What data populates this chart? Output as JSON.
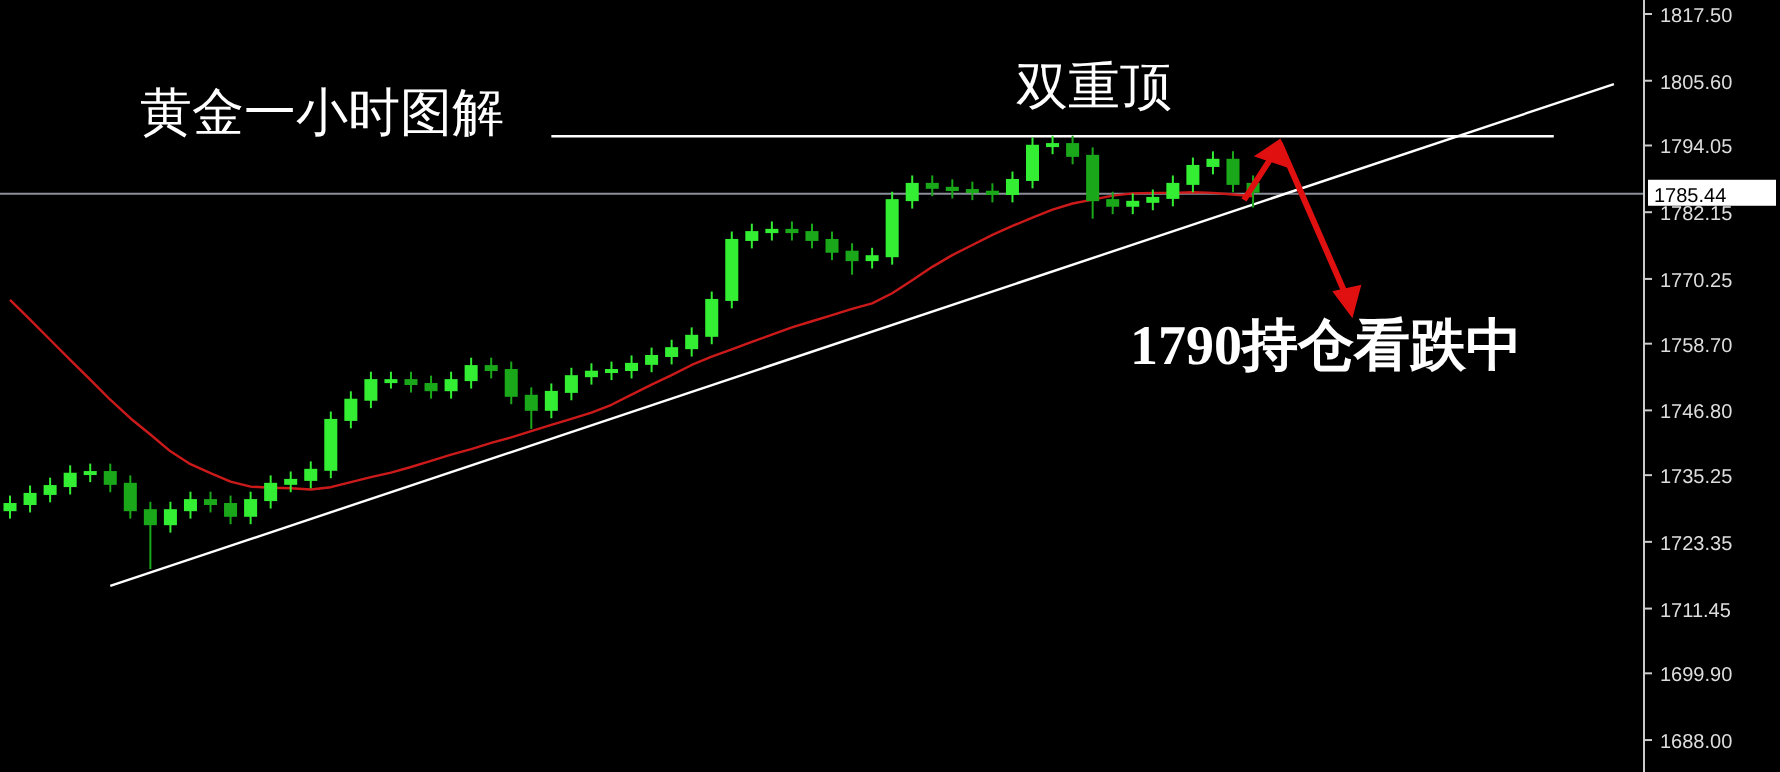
{
  "chart_data": {
    "type": "candlestick",
    "categories": [
      null,
      null,
      null,
      null,
      null,
      null,
      null,
      null,
      null,
      null,
      null,
      null,
      null,
      null,
      null,
      null,
      null,
      null,
      null,
      null,
      null,
      null,
      null,
      null,
      null,
      null,
      null,
      null,
      null,
      null,
      null,
      null,
      null,
      null,
      null,
      null,
      null,
      null,
      null,
      null,
      null,
      null,
      null,
      null,
      null,
      null,
      null,
      null,
      null,
      null,
      null,
      null,
      null,
      null,
      null,
      null,
      null,
      null,
      null,
      null,
      null,
      null,
      null,
      null,
      null,
      null,
      null,
      null,
      null,
      null,
      null,
      null,
      null,
      null,
      null,
      null,
      null,
      null,
      null,
      null,
      null,
      null
    ],
    "ohlc": [
      [
        1729.0,
        1731.6,
        1727.5,
        1730.1
      ],
      [
        1730.1,
        1733.4,
        1728.6,
        1731.9
      ],
      [
        1731.9,
        1734.8,
        1730.4,
        1733.3
      ],
      [
        1733.3,
        1737.0,
        1731.8,
        1735.5
      ],
      [
        1735.5,
        1737.3,
        1734.0,
        1735.8
      ],
      [
        1735.8,
        1737.3,
        1732.2,
        1733.7
      ],
      [
        1733.7,
        1735.2,
        1727.5,
        1729.0
      ],
      [
        1729.0,
        1730.5,
        1718.5,
        1726.5
      ],
      [
        1726.5,
        1730.5,
        1725.0,
        1729.0
      ],
      [
        1729.0,
        1732.3,
        1727.5,
        1730.8
      ],
      [
        1730.8,
        1732.3,
        1728.6,
        1730.1
      ],
      [
        1730.1,
        1731.6,
        1726.5,
        1728.0
      ],
      [
        1728.0,
        1732.3,
        1726.5,
        1730.8
      ],
      [
        1730.8,
        1735.2,
        1729.3,
        1733.7
      ],
      [
        1733.7,
        1735.9,
        1732.2,
        1734.4
      ],
      [
        1734.4,
        1737.7,
        1732.9,
        1736.2
      ],
      [
        1736.2,
        1746.6,
        1734.7,
        1745.1
      ],
      [
        1745.1,
        1750.2,
        1743.6,
        1748.7
      ],
      [
        1748.7,
        1753.7,
        1747.2,
        1752.2
      ],
      [
        1752.2,
        1753.7,
        1750.7,
        1752.2
      ],
      [
        1752.2,
        1753.7,
        1750.0,
        1751.5
      ],
      [
        1751.5,
        1753.0,
        1748.9,
        1750.4
      ],
      [
        1750.4,
        1753.7,
        1748.9,
        1752.2
      ],
      [
        1752.2,
        1756.2,
        1750.7,
        1754.7
      ],
      [
        1754.7,
        1756.2,
        1752.5,
        1754.0
      ],
      [
        1754.0,
        1755.5,
        1747.9,
        1749.4
      ],
      [
        1749.4,
        1750.9,
        1743.5,
        1746.9
      ],
      [
        1746.9,
        1751.6,
        1745.4,
        1750.1
      ],
      [
        1750.1,
        1754.4,
        1748.6,
        1752.9
      ],
      [
        1752.9,
        1755.2,
        1751.4,
        1753.7
      ],
      [
        1753.7,
        1755.5,
        1752.2,
        1754.0
      ],
      [
        1754.0,
        1756.6,
        1752.5,
        1755.1
      ],
      [
        1755.1,
        1758.0,
        1753.6,
        1756.5
      ],
      [
        1756.5,
        1759.4,
        1755.0,
        1757.9
      ],
      [
        1757.9,
        1761.6,
        1756.4,
        1760.1
      ],
      [
        1760.1,
        1768.0,
        1758.6,
        1766.5
      ],
      [
        1766.5,
        1778.7,
        1765.0,
        1777.2
      ],
      [
        1777.2,
        1780.1,
        1775.7,
        1778.6
      ],
      [
        1778.6,
        1780.5,
        1777.1,
        1779.0
      ],
      [
        1779.0,
        1780.5,
        1777.1,
        1778.6
      ],
      [
        1778.6,
        1780.1,
        1775.7,
        1777.2
      ],
      [
        1777.2,
        1778.7,
        1773.6,
        1775.1
      ],
      [
        1775.1,
        1776.6,
        1771.0,
        1773.6
      ],
      [
        1773.6,
        1775.8,
        1772.1,
        1774.3
      ],
      [
        1774.3,
        1785.8,
        1772.8,
        1784.3
      ],
      [
        1784.3,
        1788.7,
        1782.8,
        1787.2
      ],
      [
        1787.2,
        1788.7,
        1785.0,
        1786.5
      ],
      [
        1786.5,
        1788.0,
        1784.6,
        1786.1
      ],
      [
        1786.1,
        1787.6,
        1784.3,
        1785.8
      ],
      [
        1785.8,
        1787.3,
        1783.9,
        1785.4
      ],
      [
        1785.4,
        1789.4,
        1783.9,
        1787.9
      ],
      [
        1787.9,
        1795.5,
        1786.4,
        1794.0
      ],
      [
        1794.0,
        1795.8,
        1792.5,
        1794.3
      ],
      [
        1794.3,
        1795.8,
        1790.7,
        1792.2
      ],
      [
        1792.2,
        1793.7,
        1781.0,
        1784.3
      ],
      [
        1784.3,
        1785.8,
        1781.8,
        1783.3
      ],
      [
        1783.3,
        1785.5,
        1781.8,
        1784.0
      ],
      [
        1784.0,
        1786.2,
        1782.5,
        1784.7
      ],
      [
        1784.7,
        1788.7,
        1783.2,
        1787.2
      ],
      [
        1787.2,
        1791.9,
        1785.7,
        1790.4
      ],
      [
        1790.4,
        1793.0,
        1788.9,
        1791.5
      ],
      [
        1791.5,
        1793.0,
        1785.7,
        1787.2
      ],
      [
        1787.2,
        1788.7,
        1783.0,
        1785.8
      ],
      null,
      null,
      null,
      null,
      null,
      null,
      null,
      null,
      null,
      null,
      null,
      null,
      null,
      null,
      null,
      null,
      null,
      null,
      null
    ],
    "series": [
      {
        "type": "line",
        "color": "#cc1a1a",
        "values": [
          1766.5,
          1763.0,
          1759.4,
          1755.8,
          1752.3,
          1748.7,
          1745.4,
          1742.5,
          1739.5,
          1737.2,
          1735.6,
          1734.1,
          1733.2,
          1733.0,
          1732.9,
          1732.7,
          1733.1,
          1734.0,
          1734.9,
          1735.7,
          1736.7,
          1737.8,
          1738.9,
          1739.9,
          1741.0,
          1742.0,
          1743.1,
          1744.2,
          1745.3,
          1746.4,
          1747.8,
          1749.6,
          1751.4,
          1753.1,
          1754.9,
          1756.4,
          1757.7,
          1759.0,
          1760.3,
          1761.6,
          1762.7,
          1763.8,
          1764.9,
          1765.9,
          1767.7,
          1770.0,
          1772.4,
          1774.5,
          1776.3,
          1778.1,
          1779.7,
          1781.2,
          1782.6,
          1783.7,
          1784.4,
          1785.1,
          1785.5,
          1785.6,
          1785.6,
          1785.7,
          1785.6,
          1785.3,
          1785.0,
          null,
          null,
          null,
          null,
          null,
          null,
          null,
          null,
          null,
          null,
          null,
          null,
          null,
          null,
          null,
          null,
          null,
          null,
          null
        ]
      },
      {
        "type": "line",
        "color": "#ffffff",
        "values": [
          null,
          null,
          null,
          null,
          null,
          1715.5,
          null,
          null,
          null,
          null,
          null,
          null,
          null,
          null,
          null,
          null,
          null,
          null,
          null,
          null,
          null,
          null,
          null,
          null,
          null,
          null,
          null,
          null,
          null,
          null,
          null,
          null,
          null,
          null,
          null,
          null,
          null,
          null,
          null,
          null,
          null,
          null,
          null,
          null,
          null,
          null,
          null,
          null,
          null,
          null,
          null,
          null,
          null,
          null,
          null,
          null,
          null,
          null,
          null,
          null,
          null,
          null,
          null,
          null,
          null,
          null,
          null,
          null,
          null,
          null,
          null,
          null,
          null,
          null,
          null,
          null,
          null,
          null,
          null,
          null,
          1805.0,
          null
        ]
      },
      {
        "type": "line",
        "color": "#ffffff",
        "values": [
          null,
          null,
          null,
          null,
          null,
          null,
          null,
          null,
          null,
          null,
          null,
          null,
          null,
          null,
          null,
          null,
          null,
          null,
          null,
          null,
          null,
          null,
          null,
          null,
          null,
          null,
          null,
          1795.7,
          null,
          null,
          null,
          null,
          null,
          null,
          null,
          null,
          null,
          null,
          null,
          null,
          null,
          null,
          null,
          null,
          null,
          null,
          null,
          null,
          null,
          null,
          null,
          null,
          null,
          null,
          null,
          null,
          null,
          null,
          null,
          null,
          null,
          null,
          null,
          null,
          null,
          null,
          null,
          null,
          null,
          null,
          null,
          null,
          null,
          null,
          null,
          null,
          null,
          1795.7,
          null,
          null,
          null,
          null
        ]
      }
    ],
    "ylim": [
      1682.3,
      1820.0
    ],
    "yticks": [
      {
        "value": 1817.5,
        "label": "1817.50"
      },
      {
        "value": 1805.6,
        "label": "1805.60"
      },
      {
        "value": 1794.05,
        "label": "1794.05"
      },
      {
        "value": 1782.15,
        "label": "1782.15"
      },
      {
        "value": 1770.25,
        "label": "1770.25"
      },
      {
        "value": 1758.7,
        "label": "1758.70"
      },
      {
        "value": 1746.8,
        "label": "1746.80"
      },
      {
        "value": 1735.25,
        "label": "1735.25"
      },
      {
        "value": 1723.35,
        "label": "1723.35"
      },
      {
        "value": 1711.45,
        "label": "1711.45"
      },
      {
        "value": 1699.9,
        "label": "1699.90"
      },
      {
        "value": 1688.0,
        "label": "1688.00"
      }
    ],
    "ref_lines": [
      {
        "axis": "y",
        "value": 1785.44,
        "label": "1785.44",
        "color": "#8a8f9a"
      }
    ],
    "annotations": [
      "黄金一小时图解",
      "双重顶",
      "1790持仓看跌中"
    ],
    "tick_labels": "y",
    "grid": false
  }
}
